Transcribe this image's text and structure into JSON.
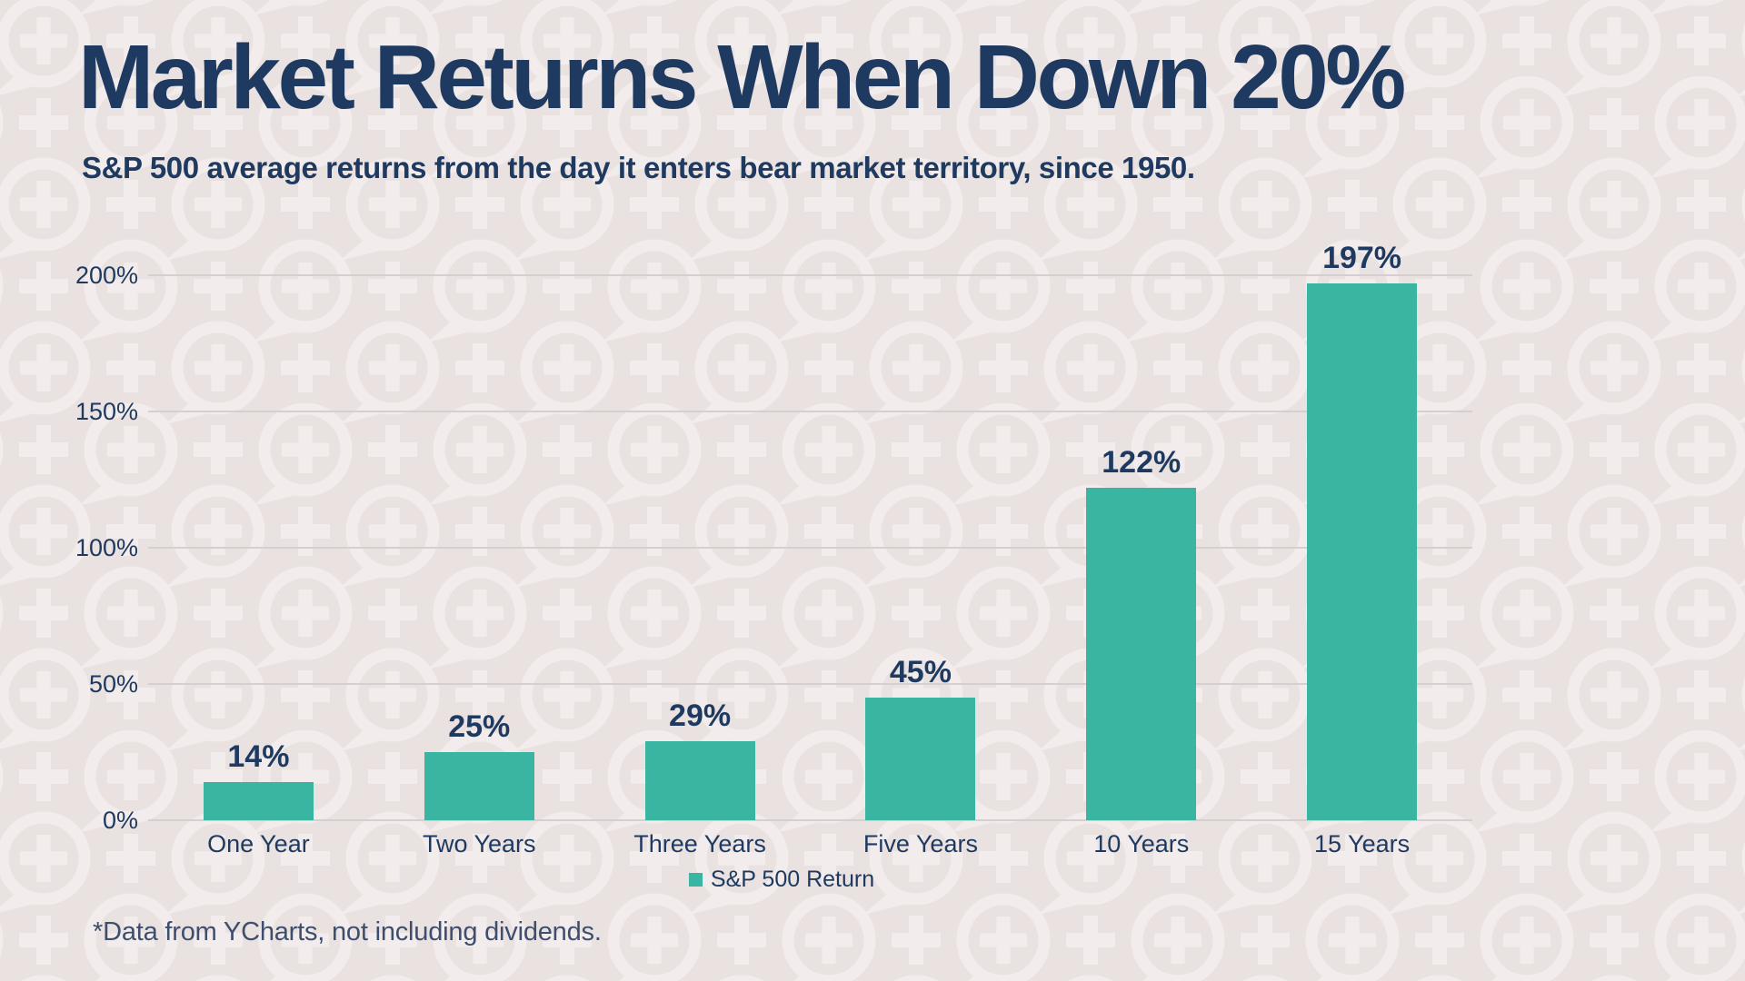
{
  "page": {
    "subtitle": "S&P 500 average returns from the day it enters bear market territory, since 1950.",
    "footnote": "*Data from YCharts, not including dividends."
  },
  "colors": {
    "background": "#eae2e1",
    "pattern": "#f2edec",
    "navy": "#1f3a60",
    "teal": "#39b5a2",
    "gridline": "#d4d0d1",
    "footnote": "#3e4e6e"
  },
  "chart_data": {
    "type": "bar",
    "title": "Market Returns When Down 20%",
    "subtitle": "S&P 500 average returns from the day it enters bear market territory, since 1950.",
    "categories": [
      "One Year",
      "Two Years",
      "Three Years",
      "Five Years",
      "10 Years",
      "15 Years"
    ],
    "series": [
      {
        "name": "S&P 500 Return",
        "values": [
          14,
          25,
          29,
          45,
          122,
          197
        ]
      }
    ],
    "value_labels": [
      "14%",
      "25%",
      "29%",
      "45%",
      "122%",
      "197%"
    ],
    "xlabel": "",
    "ylabel": "",
    "ylim": [
      0,
      200
    ],
    "y_ticks": [
      {
        "value": 0,
        "label": "0%"
      },
      {
        "value": 50,
        "label": "50%"
      },
      {
        "value": 100,
        "label": "100%"
      },
      {
        "value": 150,
        "label": "150%"
      },
      {
        "value": 200,
        "label": "200%"
      }
    ],
    "grid": "horizontal",
    "legend_position": "bottom",
    "annotation": "*Data from YCharts, not including dividends."
  }
}
